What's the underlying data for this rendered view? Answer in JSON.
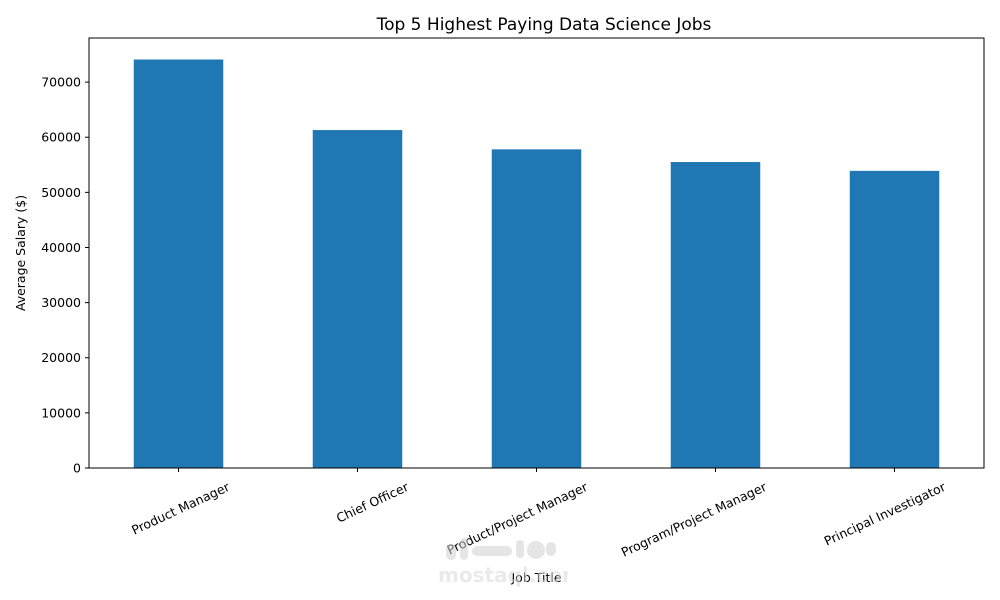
{
  "chart_data": {
    "type": "bar",
    "title": "Top 5 Highest Paying Data Science Jobs",
    "xlabel": "Job Title",
    "ylabel": "Average Salary ($)",
    "categories": [
      "Product Manager",
      "Chief Officer",
      "Product/Project Manager",
      "Program/Project Manager",
      "Principal Investigator"
    ],
    "values": [
      74100,
      61300,
      57800,
      55500,
      53900
    ],
    "ylim": [
      0,
      78000
    ],
    "yticks": [
      0,
      10000,
      20000,
      30000,
      40000,
      50000,
      60000,
      70000
    ],
    "bar_color": "#1f77b4",
    "grid": false,
    "legend": "none"
  },
  "watermark": {
    "text": "mostaql.com",
    "logo": "mostaql-logo"
  }
}
